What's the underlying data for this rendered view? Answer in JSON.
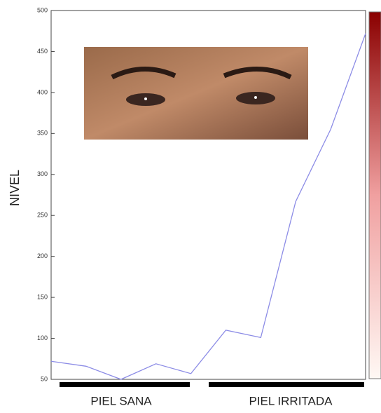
{
  "chart_data": {
    "type": "line",
    "y_label": "NIVEL",
    "x": [
      0,
      1,
      2,
      3,
      4,
      5,
      6,
      7,
      8,
      9
    ],
    "xlim": [
      0,
      9
    ],
    "series": [
      {
        "color": "#8c8ce6",
        "values": [
          72,
          66,
          50,
          69,
          57,
          110,
          101,
          267,
          355,
          472
        ]
      }
    ],
    "ylim": [
      50,
      500
    ],
    "yticks": [
      50,
      100,
      150,
      200,
      250,
      300,
      350,
      400,
      450,
      500
    ],
    "group_labels": [
      "PIEL SANA",
      "PIEL IRRITADA"
    ]
  }
}
